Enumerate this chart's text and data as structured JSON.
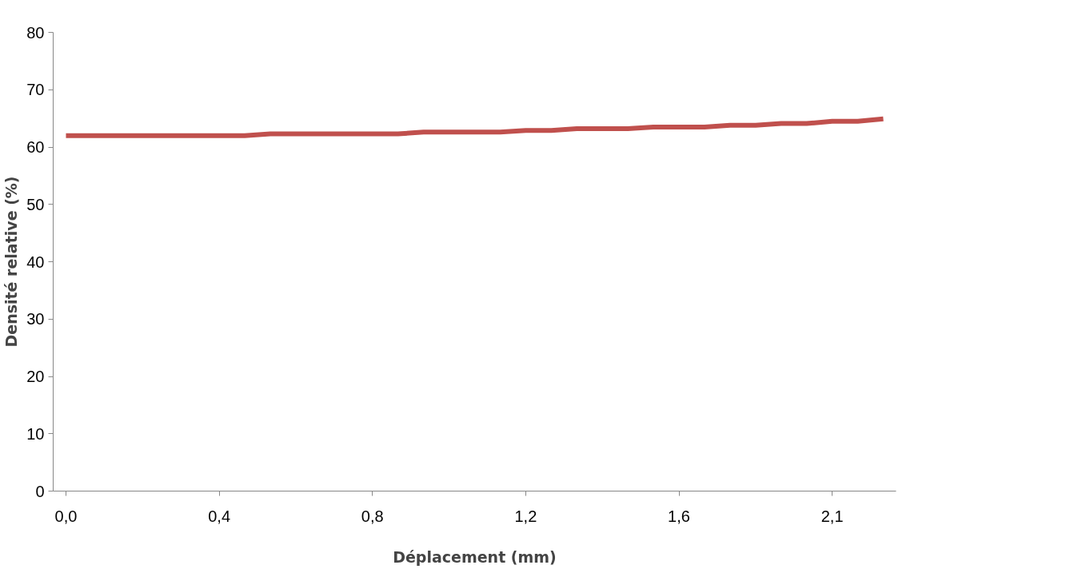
{
  "chart_data": {
    "type": "line",
    "xlabel": "Déplacement (mm)",
    "ylabel": "Densité relative (%)",
    "categories": [
      "0,0",
      null,
      null,
      null,
      null,
      null,
      "0,4",
      null,
      null,
      null,
      null,
      null,
      "0,8",
      null,
      null,
      null,
      null,
      null,
      "1,2",
      null,
      null,
      null,
      null,
      null,
      "1,6",
      null,
      null,
      null,
      null,
      null,
      "2,1",
      null,
      null
    ],
    "series": [
      {
        "color": "#c0504d",
        "values": [
          62.0,
          62.0,
          62.0,
          62.0,
          62.0,
          62.0,
          62.0,
          62.0,
          62.3,
          62.3,
          62.3,
          62.3,
          62.3,
          62.3,
          62.6,
          62.6,
          62.6,
          62.6,
          62.9,
          62.9,
          63.2,
          63.2,
          63.2,
          63.5,
          63.5,
          63.5,
          63.8,
          63.8,
          64.1,
          64.1,
          64.5,
          64.5,
          64.9
        ]
      }
    ],
    "ylim": [
      0,
      80
    ],
    "yticks": [
      0,
      10,
      20,
      30,
      40,
      50,
      60,
      70,
      80
    ],
    "grid": false,
    "marker": "none",
    "line_style": "solid"
  }
}
